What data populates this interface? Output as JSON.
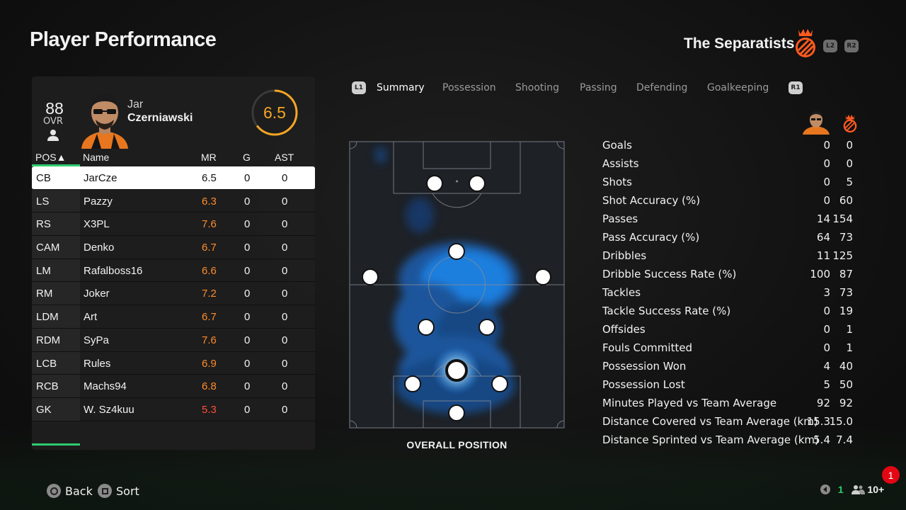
{
  "page": {
    "title": "Player Performance",
    "team_name": "The Separatists",
    "shoulder_buttons": {
      "l2": "L2",
      "r2": "R2"
    }
  },
  "player": {
    "ovr": "88",
    "ovr_label": "OVR",
    "first_name": "Jar",
    "last_name": "Czerniawski",
    "match_rating": "6.5"
  },
  "table": {
    "headers": {
      "pos": "POS▲",
      "name": "Name",
      "mr": "MR",
      "g": "G",
      "ast": "AST"
    },
    "rows": [
      {
        "pos": "CB",
        "name": "JarCze",
        "mr": "6.5",
        "g": "0",
        "ast": "0",
        "selected": true
      },
      {
        "pos": "LS",
        "name": "Pazzy",
        "mr": "6.3",
        "g": "0",
        "ast": "0"
      },
      {
        "pos": "RS",
        "name": "X3PL",
        "mr": "7.6",
        "g": "0",
        "ast": "0"
      },
      {
        "pos": "CAM",
        "name": "Denko",
        "mr": "6.7",
        "g": "0",
        "ast": "0"
      },
      {
        "pos": "LM",
        "name": "Rafalboss16",
        "mr": "6.6",
        "g": "0",
        "ast": "0"
      },
      {
        "pos": "RM",
        "name": "Joker",
        "mr": "7.2",
        "g": "0",
        "ast": "0"
      },
      {
        "pos": "LDM",
        "name": "Art",
        "mr": "6.7",
        "g": "0",
        "ast": "0"
      },
      {
        "pos": "RDM",
        "name": "SyPa",
        "mr": "7.6",
        "g": "0",
        "ast": "0"
      },
      {
        "pos": "LCB",
        "name": "Rules",
        "mr": "6.9",
        "g": "0",
        "ast": "0"
      },
      {
        "pos": "RCB",
        "name": "Machs94",
        "mr": "6.8",
        "g": "0",
        "ast": "0"
      },
      {
        "pos": "GK",
        "name": "W. Sz4kuu",
        "mr": "5.3",
        "g": "0",
        "ast": "0"
      }
    ]
  },
  "tabs": {
    "left_button": "L1",
    "right_button": "R1",
    "items": [
      "Summary",
      "Possession",
      "Shooting",
      "Passing",
      "Defending",
      "Goalkeeping"
    ],
    "active": "Summary"
  },
  "pitch": {
    "label": "OVERALL POSITION"
  },
  "stats": [
    {
      "label": "Goals",
      "player": "0",
      "team": "0"
    },
    {
      "label": "Assists",
      "player": "0",
      "team": "0"
    },
    {
      "label": "Shots",
      "player": "0",
      "team": "5"
    },
    {
      "label": "Shot Accuracy (%)",
      "player": "0",
      "team": "60"
    },
    {
      "label": "Passes",
      "player": "14",
      "team": "154"
    },
    {
      "label": "Pass Accuracy (%)",
      "player": "64",
      "team": "73"
    },
    {
      "label": "Dribbles",
      "player": "11",
      "team": "125"
    },
    {
      "label": "Dribble Success Rate (%)",
      "player": "100",
      "team": "87"
    },
    {
      "label": "Tackles",
      "player": "3",
      "team": "73"
    },
    {
      "label": "Tackle Success Rate (%)",
      "player": "0",
      "team": "19"
    },
    {
      "label": "Offsides",
      "player": "0",
      "team": "1"
    },
    {
      "label": "Fouls Committed",
      "player": "0",
      "team": "1"
    },
    {
      "label": "Possession Won",
      "player": "4",
      "team": "40"
    },
    {
      "label": "Possession Lost",
      "player": "5",
      "team": "50"
    },
    {
      "label": "Minutes Played vs Team Average",
      "player": "92",
      "team": "92"
    },
    {
      "label": "Distance Covered vs Team Average (km)",
      "player": "15.3",
      "team": "15.0"
    },
    {
      "label": "Distance Sprinted vs Team Average (km)",
      "player": "5.4",
      "team": "7.4"
    }
  ],
  "footer": {
    "back_label": "Back",
    "sort_label": "Sort",
    "notification_count": "1",
    "online_count": "1",
    "friends_count": "10+"
  },
  "colors": {
    "accent_green": "#2ecc71",
    "rating_orange": "#f6a623",
    "rating_red": "#ff4f3a",
    "heatmap_blue": "#1e90ff",
    "badge_red": "#e30613"
  }
}
